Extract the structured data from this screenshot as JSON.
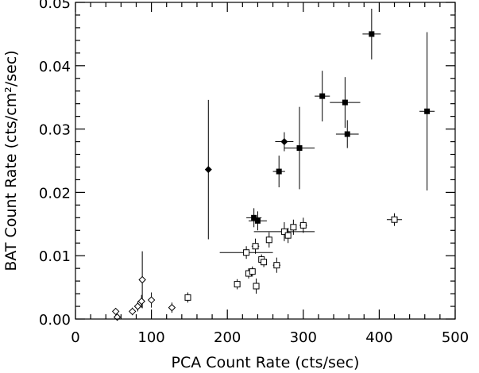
{
  "chart_data": {
    "type": "scatter",
    "xlabel": "PCA Count Rate (cts/sec)",
    "ylabel": "BAT Count Rate (cts/cm²/sec)",
    "xlim": [
      0,
      500
    ],
    "ylim": [
      0,
      0.05
    ],
    "xticks": [
      "0",
      "100",
      "200",
      "300",
      "400",
      "500"
    ],
    "yticks": [
      "0.00",
      "0.01",
      "0.02",
      "0.03",
      "0.04",
      "0.05"
    ],
    "grid": false,
    "legend": "none",
    "series": [
      {
        "marker": "filled-square",
        "points": [
          {
            "x": 235,
            "y": 0.016,
            "xerr": 10,
            "yerr": 0.0015
          },
          {
            "x": 240,
            "y": 0.0155,
            "xerr": 12,
            "yerr": 0.0015
          },
          {
            "x": 268,
            "y": 0.0233,
            "xerr": 8,
            "yerr": 0.0025
          },
          {
            "x": 295,
            "y": 0.027,
            "xerr": 20,
            "yerr": 0.0065
          },
          {
            "x": 325,
            "y": 0.0352,
            "xerr": 10,
            "yerr": 0.004
          },
          {
            "x": 355,
            "y": 0.0342,
            "xerr": 20,
            "yerr": 0.004
          },
          {
            "x": 358,
            "y": 0.0292,
            "xerr": 15,
            "yerr": 0.0022
          },
          {
            "x": 390,
            "y": 0.045,
            "xerr": 12,
            "yerr": 0.004
          },
          {
            "x": 463,
            "y": 0.0328,
            "xerr": 10,
            "yerr": 0.0125
          }
        ]
      },
      {
        "marker": "filled-diamond",
        "points": [
          {
            "x": 175,
            "y": 0.0236,
            "xerr": 0,
            "yerr": 0.011
          },
          {
            "x": 275,
            "y": 0.028,
            "xerr": 12,
            "yerr": 0.0015
          }
        ]
      },
      {
        "marker": "open-square",
        "points": [
          {
            "x": 148,
            "y": 0.0034,
            "xerr": 2,
            "yerr": 0.0008
          },
          {
            "x": 213,
            "y": 0.0055,
            "xerr": 3,
            "yerr": 0.0008
          },
          {
            "x": 225,
            "y": 0.0105,
            "xerr": 35,
            "yerr": 0.001
          },
          {
            "x": 228,
            "y": 0.0072,
            "xerr": 4,
            "yerr": 0.0008
          },
          {
            "x": 233,
            "y": 0.0075,
            "xerr": 3,
            "yerr": 0.0008
          },
          {
            "x": 237,
            "y": 0.0115,
            "xerr": 5,
            "yerr": 0.0012
          },
          {
            "x": 238,
            "y": 0.0052,
            "xerr": 3,
            "yerr": 0.0012
          },
          {
            "x": 245,
            "y": 0.0094,
            "xerr": 3,
            "yerr": 0.0008
          },
          {
            "x": 248,
            "y": 0.009,
            "xerr": 3,
            "yerr": 0.0008
          },
          {
            "x": 255,
            "y": 0.0125,
            "xerr": 3,
            "yerr": 0.0012
          },
          {
            "x": 265,
            "y": 0.0085,
            "xerr": 5,
            "yerr": 0.0012
          },
          {
            "x": 275,
            "y": 0.0138,
            "xerr": 40,
            "yerr": 0.0015
          },
          {
            "x": 280,
            "y": 0.0132,
            "xerr": 4,
            "yerr": 0.0012
          },
          {
            "x": 287,
            "y": 0.0145,
            "xerr": 3,
            "yerr": 0.0012
          },
          {
            "x": 300,
            "y": 0.0148,
            "xerr": 5,
            "yerr": 0.0012
          },
          {
            "x": 420,
            "y": 0.0157,
            "xerr": 10,
            "yerr": 0.001
          }
        ]
      },
      {
        "marker": "open-diamond",
        "points": [
          {
            "x": 53,
            "y": 0.0012,
            "xerr": 0,
            "yerr": 0.0005
          },
          {
            "x": 55,
            "y": 0.0003,
            "xerr": 0,
            "yerr": 0.0004
          },
          {
            "x": 75,
            "y": 0.0012,
            "xerr": 0,
            "yerr": 0.0006
          },
          {
            "x": 82,
            "y": 0.002,
            "xerr": 0,
            "yerr": 0.0008
          },
          {
            "x": 87,
            "y": 0.0028,
            "xerr": 0,
            "yerr": 0.001
          },
          {
            "x": 88,
            "y": 0.0062,
            "xerr": 0,
            "yerr": 0.0045
          },
          {
            "x": 100,
            "y": 0.003,
            "xerr": 0,
            "yerr": 0.0012
          },
          {
            "x": 127,
            "y": 0.0018,
            "xerr": 0,
            "yerr": 0.0008
          }
        ]
      }
    ]
  }
}
